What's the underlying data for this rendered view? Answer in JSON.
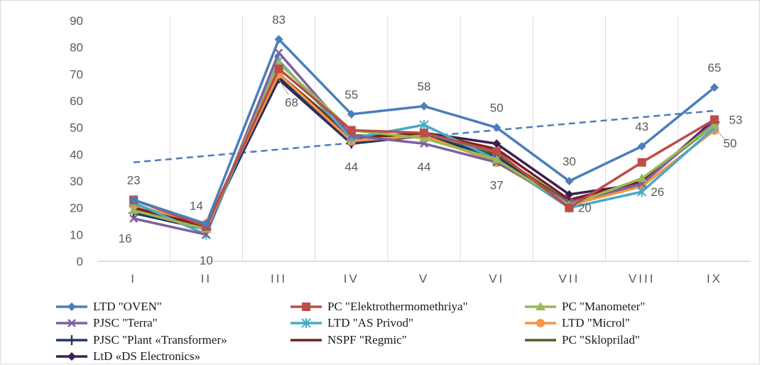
{
  "chart_data": {
    "type": "line",
    "categories": [
      "I",
      "II",
      "III",
      "IV",
      "V",
      "VI",
      "VII",
      "VIII",
      "IX"
    ],
    "ylim": [
      0,
      90
    ],
    "yticks": [
      0,
      10,
      20,
      30,
      40,
      50,
      60,
      70,
      80,
      90
    ],
    "grid": "vertical",
    "legend_position": "bottom",
    "series": [
      {
        "name": "LTD \"OVEN\"",
        "color": "#4a7ebb",
        "marker": "diamond",
        "values": [
          23,
          14,
          83,
          55,
          58,
          50,
          30,
          43,
          65
        ]
      },
      {
        "name": "PC \"Elektrothermomethriya\"",
        "color": "#be4b48",
        "marker": "square",
        "values": [
          23,
          13,
          72,
          49,
          48,
          41,
          20,
          37,
          53
        ]
      },
      {
        "name": "PC \"Manometer\"",
        "color": "#98b954",
        "marker": "triangle",
        "values": [
          19,
          12,
          74,
          49,
          46,
          38,
          21,
          31,
          51
        ]
      },
      {
        "name": "PJSC \"Terra\"",
        "color": "#7d60a0",
        "marker": "x",
        "values": [
          16,
          10,
          78,
          47,
          44,
          37,
          22,
          29,
          52
        ]
      },
      {
        "name": "LTD \"AS Privod\"",
        "color": "#46aac5",
        "marker": "asterisk",
        "values": [
          22,
          10,
          75,
          46,
          51,
          38,
          20,
          26,
          50
        ]
      },
      {
        "name": "LTD \"Microl\"",
        "color": "#f79646",
        "marker": "circle",
        "values": [
          21,
          14,
          70,
          45,
          47,
          37,
          21,
          28,
          49
        ]
      },
      {
        "name": "PJSC \"Plant «Transformer»",
        "color": "#1f3864",
        "marker": "plus",
        "values": [
          18,
          12,
          69,
          44,
          47,
          39,
          21,
          29,
          52
        ]
      },
      {
        "name": "NSPF \"Regmic\"",
        "color": "#7b1f1f",
        "marker": "none",
        "values": [
          20,
          13,
          70,
          46,
          48,
          42,
          23,
          30,
          52
        ]
      },
      {
        "name": "PC \"Skloprilad\"",
        "color": "#4f6228",
        "marker": "none",
        "values": [
          19,
          12,
          70,
          47,
          47,
          40,
          22,
          30,
          51
        ]
      },
      {
        "name": "LtD «DS Electronics»",
        "color": "#3d1f4f",
        "marker": "diamond",
        "values": [
          21,
          13,
          68,
          44,
          48,
          44,
          25,
          29,
          53
        ]
      }
    ],
    "trendline": {
      "series": "LTD \"OVEN\"",
      "style": "dashed",
      "color": "#4a7ebb",
      "start": 37,
      "end": 56.3
    },
    "data_labels": [
      {
        "category": "I",
        "text": "23"
      },
      {
        "category": "I",
        "text": "16"
      },
      {
        "category": "II",
        "text": "14"
      },
      {
        "category": "II",
        "text": "10"
      },
      {
        "category": "III",
        "text": "83"
      },
      {
        "category": "III",
        "text": "68"
      },
      {
        "category": "IV",
        "text": "55"
      },
      {
        "category": "IV",
        "text": "44"
      },
      {
        "category": "V",
        "text": "58"
      },
      {
        "category": "V",
        "text": "44"
      },
      {
        "category": "VI",
        "text": "50"
      },
      {
        "category": "VI",
        "text": "37"
      },
      {
        "category": "VII",
        "text": "30"
      },
      {
        "category": "VII",
        "text": "20"
      },
      {
        "category": "VIII",
        "text": "43"
      },
      {
        "category": "VIII",
        "text": "26"
      },
      {
        "category": "IX",
        "text": "65"
      },
      {
        "category": "IX",
        "text": "53"
      },
      {
        "category": "IX",
        "text": "50"
      }
    ]
  }
}
